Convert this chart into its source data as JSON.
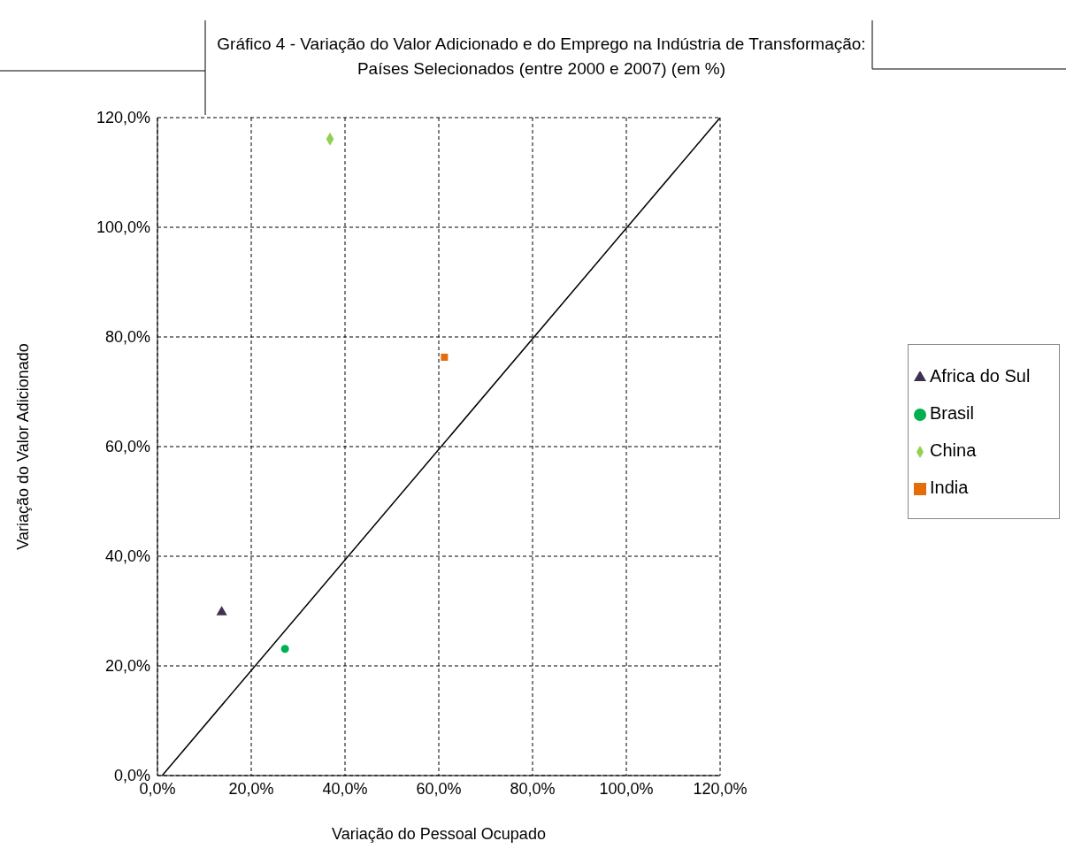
{
  "chart_data": {
    "type": "scatter",
    "title": "Gráfico 4 - Variação do Valor Adicionado e do Emprego na Indústria de Transformação: Países Selecionados (entre 2000 e 2007) (em %)",
    "xlabel": "Variação do Pessoal Ocupado",
    "ylabel": "Variação do Valor Adicionado",
    "series": [
      {
        "name": "China",
        "color": "#92d050",
        "marker": "diamond",
        "x": [
          36.8
        ],
        "values": [
          116.1
        ]
      },
      {
        "name": "India",
        "color": "#e46c0a",
        "marker": "square",
        "x": [
          61.2
        ],
        "values": [
          76.3
        ]
      },
      {
        "name": "Africa do Sul",
        "color": "#3f3151",
        "marker": "triangle",
        "x": [
          13.7
        ],
        "values": [
          29.8
        ]
      },
      {
        "name": "Brasil",
        "color": "#00b050",
        "marker": "circle",
        "x": [
          27.2
        ],
        "values": [
          23.1
        ]
      },
      {
        "type": "line",
        "color": "#000000",
        "x": [
          1,
          120
        ],
        "values": [
          0,
          120
        ]
      }
    ],
    "xlim": [
      0,
      120
    ],
    "ylim": [
      0,
      120
    ],
    "xticks": [
      {
        "value": 0,
        "label": "0,0%"
      },
      {
        "value": 20,
        "label": "20,0%"
      },
      {
        "value": 40,
        "label": "40,0%"
      },
      {
        "value": 60,
        "label": "60,0%"
      },
      {
        "value": 80,
        "label": "80,0%"
      },
      {
        "value": 100,
        "label": "100,0%"
      },
      {
        "value": 120,
        "label": "120,0%"
      }
    ],
    "yticks": [
      {
        "value": 0,
        "label": "0,0%"
      },
      {
        "value": 20,
        "label": "20,0%"
      },
      {
        "value": 40,
        "label": "40,0%"
      },
      {
        "value": 60,
        "label": "60,0%"
      },
      {
        "value": 80,
        "label": "80,0%"
      },
      {
        "value": 100,
        "label": "100,0%"
      },
      {
        "value": 120,
        "label": "120,0%"
      }
    ],
    "grid": true,
    "legend": "right"
  }
}
